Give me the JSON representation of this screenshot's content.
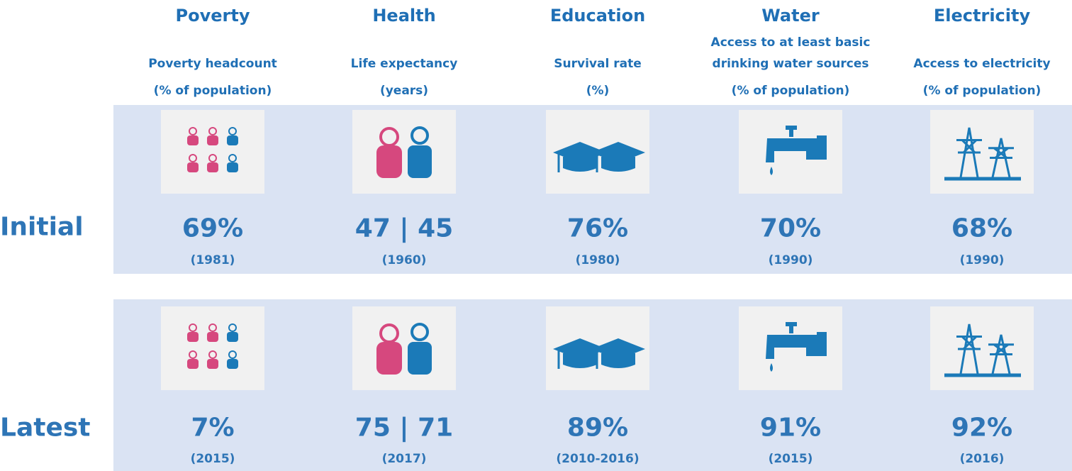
{
  "rows": [
    "Initial",
    "Latest"
  ],
  "columns": [
    {
      "title": "Poverty",
      "subtitle": [
        "Poverty headcount",
        "(% of population)"
      ],
      "initial": {
        "value": "69%",
        "year": "(1981)"
      },
      "latest": {
        "value": "7%",
        "year": "(2015)"
      }
    },
    {
      "title": "Health",
      "subtitle": [
        "Life expectancy",
        "(years)"
      ],
      "initial": {
        "value": "47 | 45",
        "year": "(1960)"
      },
      "latest": {
        "value": "75 | 71",
        "year": "(2017)"
      }
    },
    {
      "title": "Education",
      "subtitle": [
        "Survival rate",
        "(%)"
      ],
      "initial": {
        "value": "76%",
        "year": "(1980)"
      },
      "latest": {
        "value": "89%",
        "year": "(2010-2016)"
      }
    },
    {
      "title": "Water",
      "subtitle": [
        "Access to at least basic",
        "drinking water sources",
        "(% of population)"
      ],
      "initial": {
        "value": "70%",
        "year": "(1990)"
      },
      "latest": {
        "value": "91%",
        "year": "(2015)"
      }
    },
    {
      "title": "Electricity",
      "subtitle": [
        "Access to electricity",
        "(% of population)"
      ],
      "initial": {
        "value": "68%",
        "year": "(1990)"
      },
      "latest": {
        "value": "92%",
        "year": "(2016)"
      }
    }
  ]
}
